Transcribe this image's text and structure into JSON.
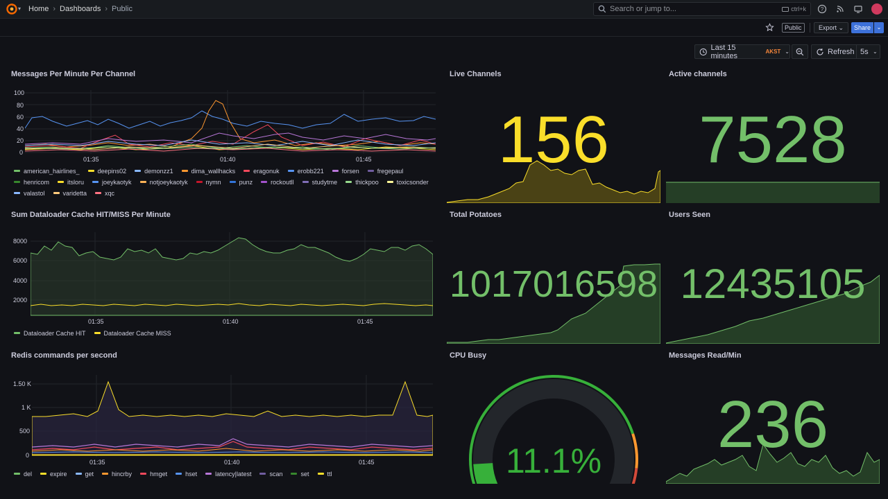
{
  "nav": {
    "breadcrumbs": [
      "Home",
      "Dashboards",
      "Public"
    ],
    "search_placeholder": "Search or jump to...",
    "search_shortcut": "ctrl+k"
  },
  "toolbar": {
    "public_tag": "Public",
    "export_label": "Export",
    "share_label": "Share",
    "time_range": "Last 15 minutes",
    "timezone": "AKST",
    "refresh_label": "Refresh",
    "refresh_interval": "5s"
  },
  "panels": {
    "messages": {
      "title": "Messages Per Minute Per Channel",
      "yticks": [
        "100",
        "80",
        "60",
        "40",
        "20",
        "0"
      ],
      "xticks": [
        "01:35",
        "01:40",
        "01:45"
      ]
    },
    "live": {
      "title": "Live Channels",
      "value": "156"
    },
    "active": {
      "title": "Active channels",
      "value": "7528"
    },
    "dataloader": {
      "title": "Sum Dataloader Cache HIT/MISS Per Minute",
      "yticks": [
        "8000",
        "6000",
        "4000",
        "2000"
      ],
      "xticks": [
        "01:35",
        "01:40",
        "01:45"
      ]
    },
    "potatoes": {
      "title": "Total Potatoes",
      "value": "1017016598"
    },
    "users": {
      "title": "Users Seen",
      "value": "12435105"
    },
    "redis": {
      "title": "Redis commands per second",
      "yticks": [
        "1.50 K",
        "1 K",
        "500",
        "0"
      ],
      "xticks": [
        "01:35",
        "01:40",
        "01:45"
      ]
    },
    "cpu": {
      "title": "CPU Busy",
      "value": "11.1%",
      "percent": 11.1
    },
    "msgread": {
      "title": "Messages Read/Min",
      "value": "236"
    }
  },
  "legends": {
    "messages": [
      {
        "name": "american_hairlines_",
        "color": "#73bf69"
      },
      {
        "name": "deepins02",
        "color": "#fade2a"
      },
      {
        "name": "demonzz1",
        "color": "#8ab8ff"
      },
      {
        "name": "dima_wallhacks",
        "color": "#ff9830"
      },
      {
        "name": "eragonuk",
        "color": "#f2495c"
      },
      {
        "name": "erobb221",
        "color": "#5794f2"
      },
      {
        "name": "forsen",
        "color": "#b877d9"
      },
      {
        "name": "fregepaul",
        "color": "#705da0"
      },
      {
        "name": "henricom",
        "color": "#37872d"
      },
      {
        "name": "itsloru",
        "color": "#fade2a"
      },
      {
        "name": "joeykaotyk",
        "color": "#5794f2"
      },
      {
        "name": "notjoeykaotyk",
        "color": "#ffb357"
      },
      {
        "name": "nymn",
        "color": "#c4162a"
      },
      {
        "name": "punz",
        "color": "#3274d9"
      },
      {
        "name": "rockoutll",
        "color": "#a352cc"
      },
      {
        "name": "studytme",
        "color": "#806eb7"
      },
      {
        "name": "thickpoo",
        "color": "#96d98d"
      },
      {
        "name": "toxicsonder",
        "color": "#fff899"
      },
      {
        "name": "valastol",
        "color": "#8ab8ff"
      },
      {
        "name": "varidetta",
        "color": "#ffcb7d"
      },
      {
        "name": "xqc",
        "color": "#ff7383"
      }
    ],
    "dataloader": [
      {
        "name": "Dataloader Cache HIT",
        "color": "#73bf69"
      },
      {
        "name": "Dataloader Cache MISS",
        "color": "#fade2a"
      }
    ],
    "redis": [
      {
        "name": "del",
        "color": "#73bf69"
      },
      {
        "name": "expire",
        "color": "#fade2a"
      },
      {
        "name": "get",
        "color": "#8ab8ff"
      },
      {
        "name": "hincrby",
        "color": "#ff9830"
      },
      {
        "name": "hmget",
        "color": "#f2495c"
      },
      {
        "name": "hset",
        "color": "#5794f2"
      },
      {
        "name": "latency|latest",
        "color": "#b877d9"
      },
      {
        "name": "scan",
        "color": "#705da0"
      },
      {
        "name": "set",
        "color": "#37872d"
      },
      {
        "name": "ttl",
        "color": "#fade2a"
      }
    ]
  },
  "colors": {
    "green": "#73bf69",
    "yellow": "#fade2a",
    "orange": "#ff9830",
    "red": "#f2495c",
    "purple": "#8f3bb8"
  }
}
